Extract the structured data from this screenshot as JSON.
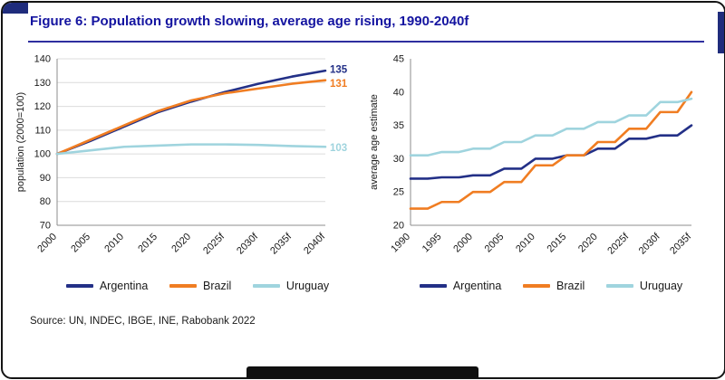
{
  "figure": {
    "title": "Figure 6: Population growth slowing, average age rising, 1990-2040f",
    "source": "Source: UN, INDEC, IBGE, INE, Rabobank 2022"
  },
  "colors": {
    "argentina": "#233087",
    "brazil": "#F07D22",
    "uruguay": "#9FD4DE",
    "title": "#1414A0",
    "rule": "#2E2E9F",
    "accent": "#1F2C7C",
    "grid": "#DCDCDC",
    "axis": "#8C8C8C"
  },
  "chart_data": [
    {
      "type": "line",
      "name": "population-index-chart",
      "ylabel": "population (2000=100)",
      "ylim": [
        70,
        140
      ],
      "yticks": [
        70,
        80,
        90,
        100,
        110,
        120,
        130,
        140
      ],
      "grid": true,
      "step": false,
      "categories": [
        "2000",
        "2005",
        "2010",
        "2015",
        "2020",
        "2025f",
        "2030f",
        "2035f",
        "2040f"
      ],
      "series": [
        {
          "name": "Argentina",
          "color_key": "argentina",
          "values": [
            100,
            105.5,
            111.5,
            117.5,
            122,
            126,
            129.5,
            132.5,
            135
          ],
          "end_label": "135",
          "label_dy": -1
        },
        {
          "name": "Brazil",
          "color_key": "brazil",
          "values": [
            100,
            106,
            112,
            118,
            122.5,
            125.5,
            127.5,
            129.5,
            131
          ],
          "end_label": "131",
          "label_dy": 4
        },
        {
          "name": "Uruguay",
          "color_key": "uruguay",
          "values": [
            100,
            101.5,
            103,
            103.5,
            104,
            104,
            103.8,
            103.3,
            103
          ],
          "end_label": "103",
          "label_dy": 1
        }
      ],
      "legend": [
        "Argentina",
        "Brazil",
        "Uruguay"
      ],
      "legend_position": "bottom"
    },
    {
      "type": "line",
      "name": "average-age-chart",
      "ylabel": "average age estimate",
      "ylim": [
        20,
        45
      ],
      "yticks": [
        20,
        25,
        30,
        35,
        40,
        45
      ],
      "grid": false,
      "step": true,
      "categories": [
        "1990",
        "1995",
        "2000",
        "2005",
        "2010",
        "2015",
        "2020",
        "2025f",
        "2030f",
        "2035f"
      ],
      "series": [
        {
          "name": "Argentina",
          "color_key": "argentina",
          "values": [
            27,
            27.2,
            27.5,
            28.5,
            30,
            30.5,
            31.5,
            33,
            33.5,
            35
          ]
        },
        {
          "name": "Brazil",
          "color_key": "brazil",
          "values": [
            22.5,
            23.5,
            25,
            26.5,
            29,
            30.5,
            32.5,
            34.5,
            37,
            40
          ]
        },
        {
          "name": "Uruguay",
          "color_key": "uruguay",
          "values": [
            30.5,
            31,
            31.5,
            32.5,
            33.5,
            34.5,
            35.5,
            36.5,
            38.5,
            39
          ]
        }
      ],
      "legend": [
        "Argentina",
        "Brazil",
        "Uruguay"
      ],
      "legend_position": "bottom"
    }
  ]
}
